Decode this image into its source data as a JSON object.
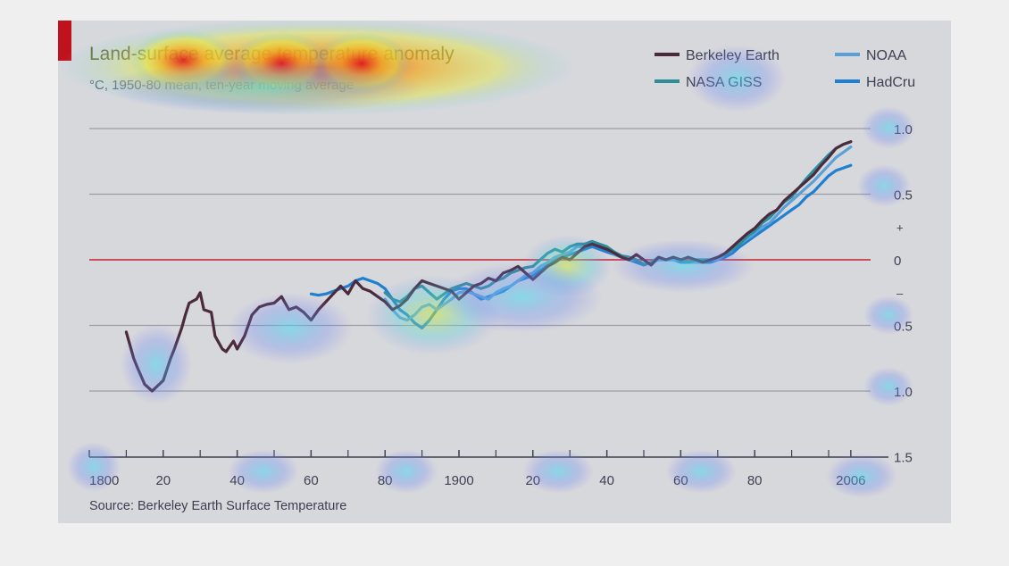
{
  "chart_data": {
    "type": "line",
    "title": "Land-surface average temperature anomaly",
    "subtitle": "°C, 1950-80 mean, ten-year moving average",
    "source": "Source: Berkeley Earth Surface Temperature",
    "xlabel": "",
    "ylabel": "",
    "xlim": [
      1800,
      2010
    ],
    "ylim": [
      -1.5,
      1.0
    ],
    "x_ticks": [
      {
        "value": 1800,
        "label": "1800"
      },
      {
        "value": 1820,
        "label": "20"
      },
      {
        "value": 1840,
        "label": "40"
      },
      {
        "value": 1860,
        "label": "60"
      },
      {
        "value": 1880,
        "label": "80"
      },
      {
        "value": 1900,
        "label": "1900"
      },
      {
        "value": 1920,
        "label": "20"
      },
      {
        "value": 1940,
        "label": "40"
      },
      {
        "value": 1960,
        "label": "60"
      },
      {
        "value": 1980,
        "label": "80"
      },
      {
        "value": 2006,
        "label": "2006"
      }
    ],
    "y_ticks": [
      {
        "value": 1.0,
        "label": "1.0"
      },
      {
        "value": 0.5,
        "label": "0.5"
      },
      {
        "value": 0,
        "label": "0"
      },
      {
        "value": -0.5,
        "label": "0.5"
      },
      {
        "value": -1.0,
        "label": "1.0"
      },
      {
        "value": -1.5,
        "label": "1.5"
      }
    ],
    "sign_markers": [
      {
        "value": 0.25,
        "label": "+"
      },
      {
        "value": -0.25,
        "label": "–"
      }
    ],
    "zero_line_color": "#c8505a",
    "grid": true,
    "legend_placement": "top-right",
    "series": [
      {
        "name": "Berkeley Earth",
        "color": "#4a2a3c",
        "x": [
          1810,
          1812,
          1813,
          1815,
          1817,
          1820,
          1822,
          1823,
          1825,
          1826,
          1827,
          1829,
          1830,
          1831,
          1833,
          1834,
          1836,
          1837,
          1839,
          1840,
          1842,
          1844,
          1846,
          1848,
          1850,
          1852,
          1854,
          1856,
          1858,
          1860,
          1862,
          1864,
          1866,
          1868,
          1870,
          1872,
          1874,
          1876,
          1878,
          1880,
          1882,
          1884,
          1886,
          1888,
          1890,
          1892,
          1894,
          1896,
          1898,
          1900,
          1902,
          1904,
          1906,
          1908,
          1910,
          1912,
          1914,
          1916,
          1918,
          1920,
          1922,
          1924,
          1926,
          1928,
          1930,
          1932,
          1934,
          1936,
          1938,
          1940,
          1942,
          1944,
          1946,
          1948,
          1950,
          1952,
          1954,
          1956,
          1958,
          1960,
          1962,
          1964,
          1966,
          1968,
          1970,
          1972,
          1974,
          1976,
          1978,
          1980,
          1982,
          1984,
          1986,
          1988,
          1990,
          1992,
          1994,
          1996,
          1998,
          2000,
          2002,
          2004,
          2006
        ],
        "y": [
          -0.55,
          -0.75,
          -0.82,
          -0.95,
          -1.0,
          -0.92,
          -0.75,
          -0.68,
          -0.52,
          -0.42,
          -0.33,
          -0.3,
          -0.25,
          -0.38,
          -0.4,
          -0.58,
          -0.68,
          -0.7,
          -0.62,
          -0.68,
          -0.58,
          -0.42,
          -0.36,
          -0.34,
          -0.33,
          -0.28,
          -0.38,
          -0.36,
          -0.4,
          -0.46,
          -0.38,
          -0.32,
          -0.26,
          -0.2,
          -0.26,
          -0.16,
          -0.22,
          -0.24,
          -0.28,
          -0.32,
          -0.38,
          -0.35,
          -0.3,
          -0.22,
          -0.16,
          -0.18,
          -0.2,
          -0.22,
          -0.24,
          -0.3,
          -0.25,
          -0.2,
          -0.18,
          -0.14,
          -0.16,
          -0.1,
          -0.08,
          -0.05,
          -0.1,
          -0.15,
          -0.1,
          -0.05,
          -0.02,
          0.02,
          0.0,
          0.05,
          0.1,
          0.12,
          0.1,
          0.08,
          0.05,
          0.02,
          0.0,
          0.04,
          0.0,
          -0.04,
          0.02,
          0.0,
          0.02,
          0.0,
          0.02,
          0.0,
          -0.02,
          0.0,
          0.02,
          0.05,
          0.1,
          0.15,
          0.2,
          0.24,
          0.3,
          0.35,
          0.38,
          0.45,
          0.5,
          0.55,
          0.6,
          0.65,
          0.72,
          0.78,
          0.85,
          0.88,
          0.9
        ]
      },
      {
        "name": "NASA GISS",
        "color": "#2f8c98",
        "x": [
          1880,
          1882,
          1884,
          1886,
          1888,
          1890,
          1892,
          1894,
          1896,
          1898,
          1900,
          1902,
          1904,
          1906,
          1908,
          1910,
          1912,
          1914,
          1916,
          1918,
          1920,
          1922,
          1924,
          1926,
          1928,
          1930,
          1932,
          1934,
          1936,
          1938,
          1940,
          1942,
          1944,
          1946,
          1948,
          1950,
          1952,
          1954,
          1956,
          1958,
          1960,
          1962,
          1964,
          1966,
          1968,
          1970,
          1972,
          1974,
          1976,
          1978,
          1980,
          1982,
          1984,
          1986,
          1988,
          1990,
          1992,
          1994,
          1996,
          1998,
          2000,
          2002,
          2004,
          2006
        ],
        "y": [
          -0.25,
          -0.3,
          -0.32,
          -0.28,
          -0.22,
          -0.2,
          -0.25,
          -0.3,
          -0.26,
          -0.22,
          -0.2,
          -0.18,
          -0.2,
          -0.22,
          -0.2,
          -0.16,
          -0.14,
          -0.1,
          -0.08,
          -0.06,
          -0.05,
          0.0,
          0.05,
          0.08,
          0.06,
          0.1,
          0.12,
          0.12,
          0.14,
          0.12,
          0.1,
          0.06,
          0.03,
          0.02,
          0.0,
          -0.04,
          -0.02,
          0.02,
          0.0,
          0.02,
          0.0,
          -0.02,
          0.0,
          0.0,
          0.0,
          0.02,
          0.04,
          0.08,
          0.12,
          0.18,
          0.22,
          0.28,
          0.32,
          0.38,
          0.44,
          0.48,
          0.55,
          0.62,
          0.68,
          0.74,
          0.8,
          0.85,
          0.88,
          0.9
        ]
      },
      {
        "name": "NOAA",
        "color": "#5aa0d8",
        "x": [
          1880,
          1882,
          1884,
          1886,
          1888,
          1890,
          1892,
          1894,
          1896,
          1898,
          1900,
          1902,
          1904,
          1906,
          1908,
          1910,
          1912,
          1914,
          1916,
          1918,
          1920,
          1922,
          1924,
          1926,
          1928,
          1930,
          1932,
          1934,
          1936,
          1938,
          1940,
          1942,
          1944,
          1946,
          1948,
          1950,
          1952,
          1954,
          1956,
          1958,
          1960,
          1962,
          1964,
          1966,
          1968,
          1970,
          1972,
          1974,
          1976,
          1978,
          1980,
          1982,
          1984,
          1986,
          1988,
          1990,
          1992,
          1994,
          1996,
          1998,
          2000,
          2002,
          2004,
          2006
        ],
        "y": [
          -0.3,
          -0.38,
          -0.44,
          -0.46,
          -0.42,
          -0.36,
          -0.34,
          -0.38,
          -0.34,
          -0.3,
          -0.25,
          -0.24,
          -0.26,
          -0.28,
          -0.3,
          -0.25,
          -0.22,
          -0.2,
          -0.16,
          -0.12,
          -0.1,
          -0.05,
          -0.02,
          0.02,
          0.04,
          0.06,
          0.1,
          0.1,
          0.12,
          0.1,
          0.08,
          0.04,
          0.02,
          0.0,
          0.0,
          -0.03,
          -0.02,
          0.0,
          0.0,
          0.0,
          0.0,
          -0.02,
          -0.02,
          -0.02,
          0.0,
          0.0,
          0.04,
          0.08,
          0.12,
          0.16,
          0.2,
          0.25,
          0.28,
          0.34,
          0.4,
          0.45,
          0.5,
          0.55,
          0.6,
          0.66,
          0.72,
          0.78,
          0.82,
          0.86
        ]
      },
      {
        "name": "HadCru",
        "color": "#1f7fd0",
        "x": [
          1860,
          1862,
          1864,
          1866,
          1868,
          1870,
          1872,
          1874,
          1876,
          1878,
          1880,
          1882,
          1884,
          1886,
          1888,
          1890,
          1892,
          1894,
          1896,
          1898,
          1900,
          1902,
          1904,
          1906,
          1908,
          1910,
          1912,
          1914,
          1916,
          1918,
          1920,
          1922,
          1924,
          1926,
          1928,
          1930,
          1932,
          1934,
          1936,
          1938,
          1940,
          1942,
          1944,
          1946,
          1948,
          1950,
          1952,
          1954,
          1956,
          1958,
          1960,
          1962,
          1964,
          1966,
          1968,
          1970,
          1972,
          1974,
          1976,
          1978,
          1980,
          1982,
          1984,
          1986,
          1988,
          1990,
          1992,
          1994,
          1996,
          1998,
          2000,
          2002,
          2004,
          2006
        ],
        "y": [
          -0.26,
          -0.27,
          -0.26,
          -0.24,
          -0.22,
          -0.2,
          -0.16,
          -0.14,
          -0.16,
          -0.18,
          -0.22,
          -0.3,
          -0.38,
          -0.42,
          -0.48,
          -0.52,
          -0.46,
          -0.38,
          -0.3,
          -0.24,
          -0.22,
          -0.22,
          -0.26,
          -0.3,
          -0.28,
          -0.26,
          -0.24,
          -0.2,
          -0.16,
          -0.14,
          -0.12,
          -0.08,
          -0.04,
          0.0,
          0.02,
          0.04,
          0.06,
          0.08,
          0.1,
          0.08,
          0.06,
          0.04,
          0.02,
          0.0,
          -0.02,
          -0.04,
          -0.02,
          0.0,
          0.0,
          0.0,
          -0.02,
          -0.02,
          -0.02,
          -0.02,
          -0.02,
          0.0,
          0.02,
          0.05,
          0.1,
          0.14,
          0.18,
          0.22,
          0.26,
          0.3,
          0.34,
          0.38,
          0.42,
          0.48,
          0.52,
          0.58,
          0.64,
          0.68,
          0.7,
          0.72
        ]
      }
    ]
  }
}
